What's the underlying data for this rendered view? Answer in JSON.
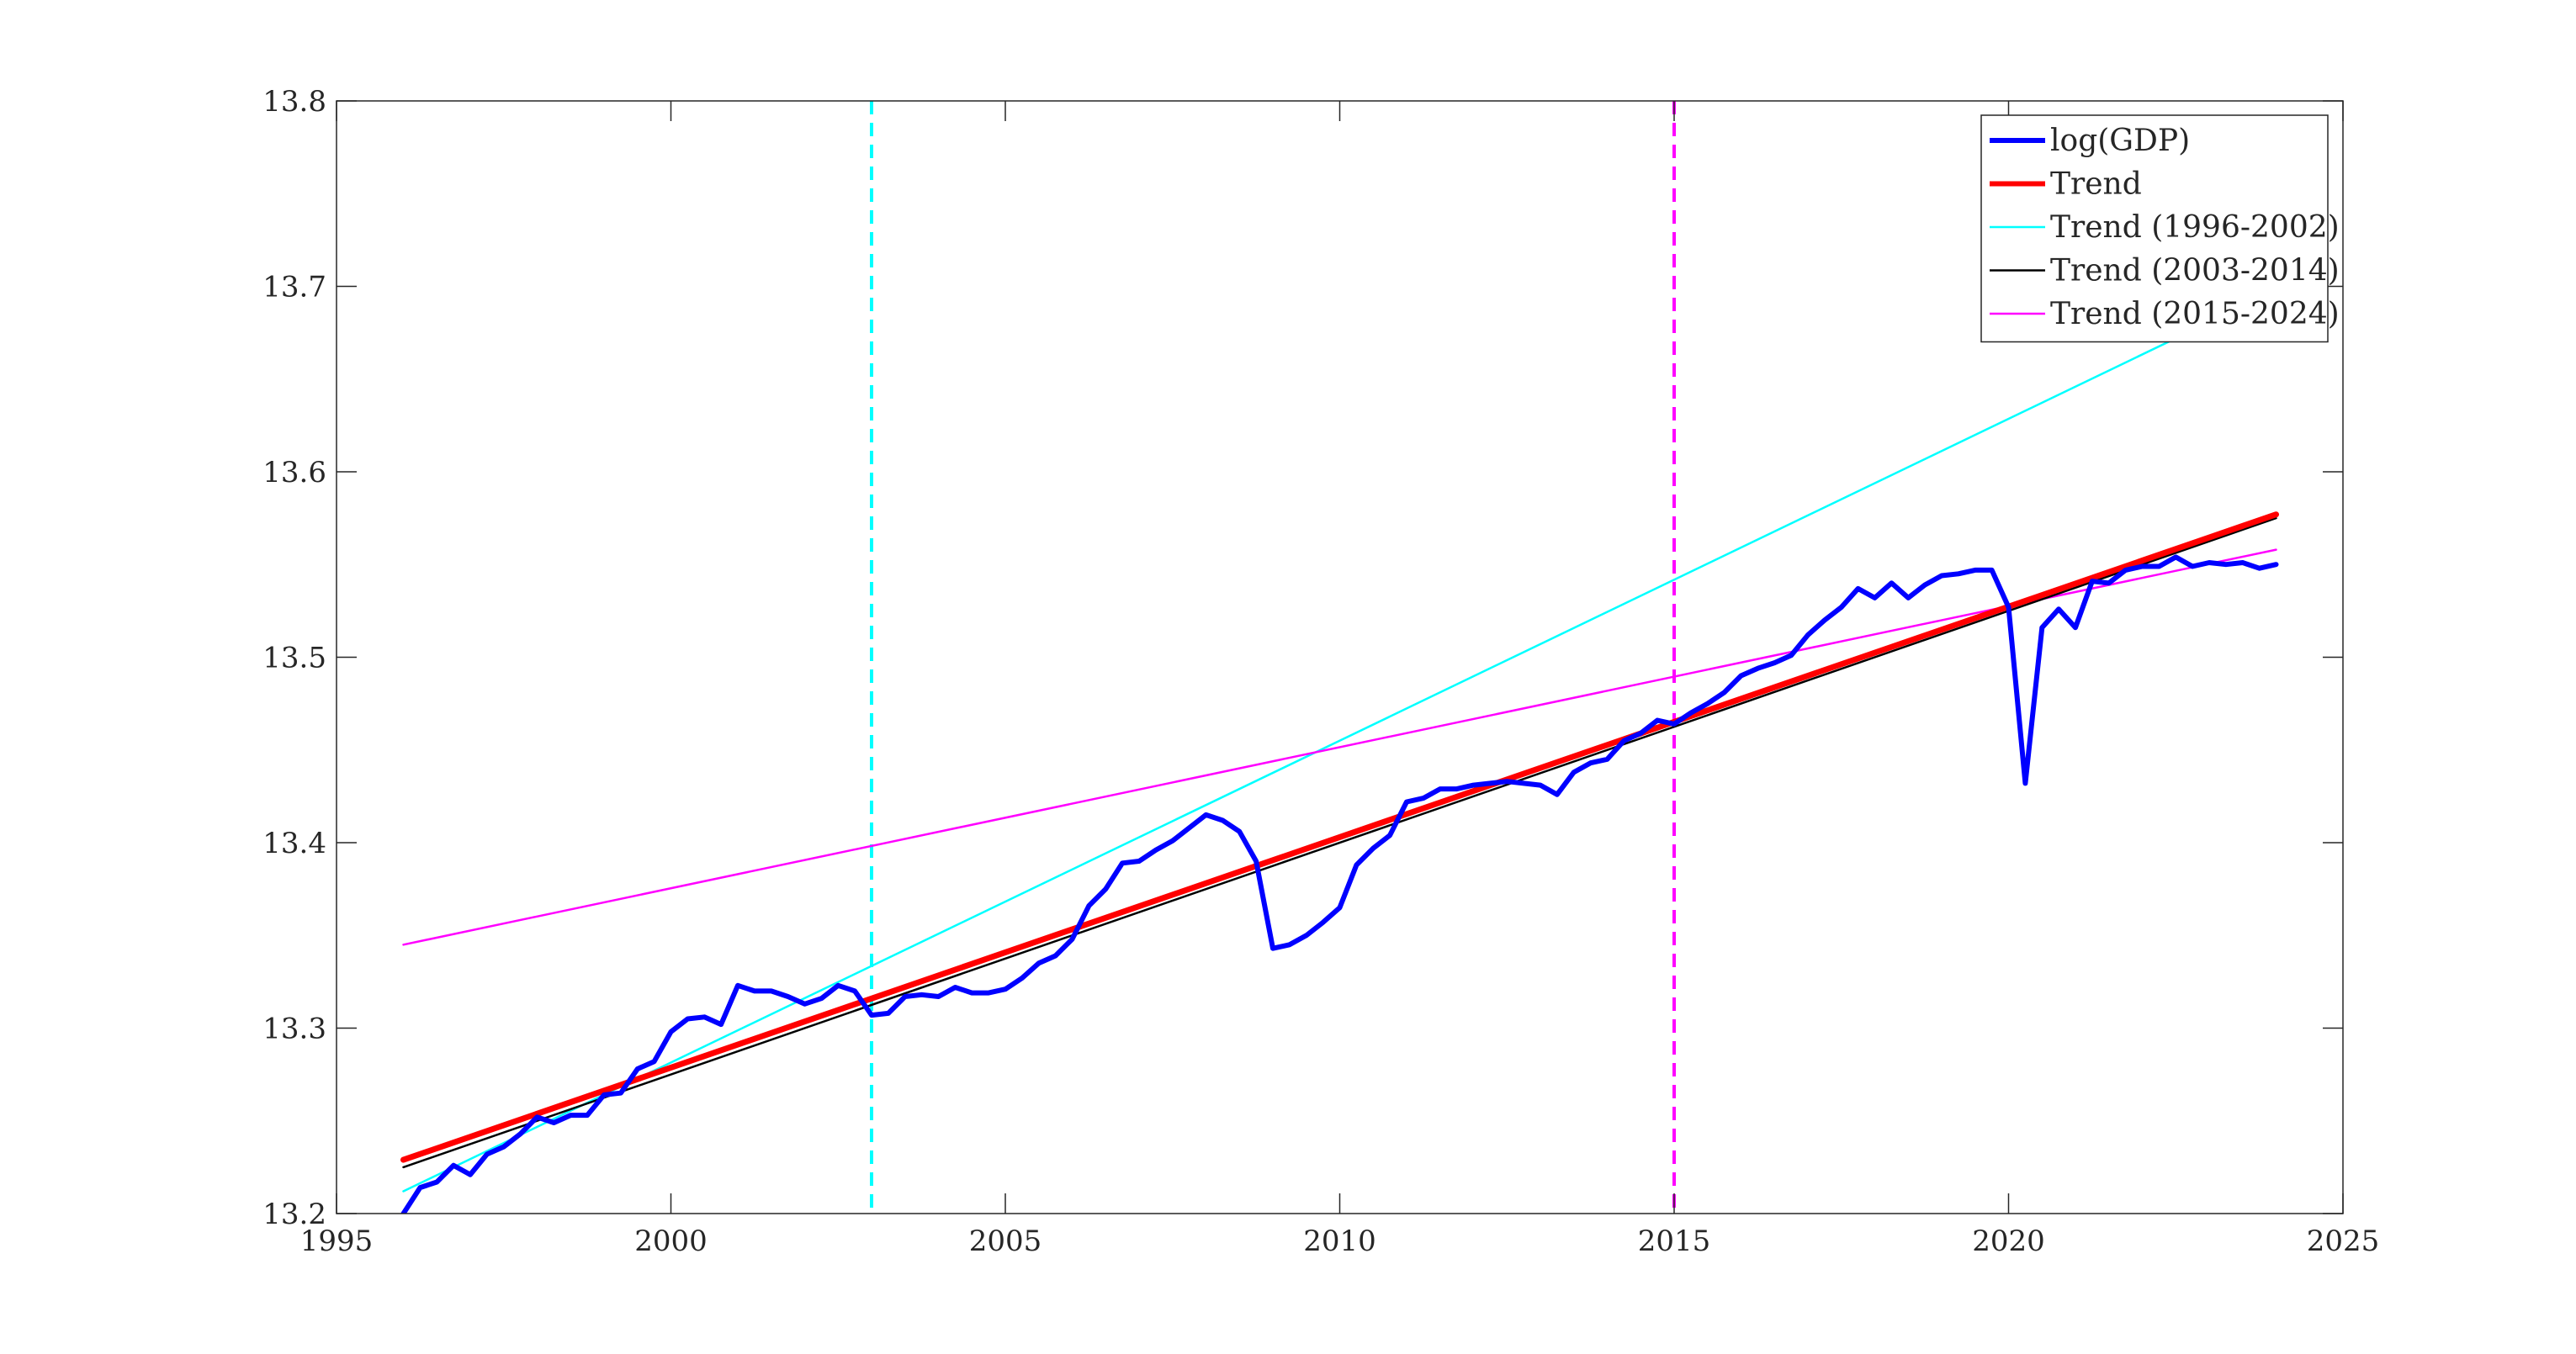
{
  "chart_data": {
    "type": "line",
    "title": "",
    "xlabel": "",
    "ylabel": "",
    "xlim": [
      1995,
      2025
    ],
    "ylim": [
      13.2,
      13.8
    ],
    "xticks": [
      "1995",
      "2000",
      "2005",
      "2010",
      "2015",
      "2020",
      "2025"
    ],
    "yticks": [
      "13.2",
      "13.3",
      "13.4",
      "13.5",
      "13.6",
      "13.7",
      "13.8"
    ],
    "grid": false,
    "legend_position": "top-right",
    "series": [
      {
        "name": "log(GDP)",
        "color": "#0000ff",
        "x": [
          1996.0,
          1996.25,
          1996.5,
          1996.75,
          1997.0,
          1997.25,
          1997.5,
          1997.75,
          1998.0,
          1998.25,
          1998.5,
          1998.75,
          1999.0,
          1999.25,
          1999.5,
          1999.75,
          2000.0,
          2000.25,
          2000.5,
          2000.75,
          2001.0,
          2001.25,
          2001.5,
          2001.75,
          2002.0,
          2002.25,
          2002.5,
          2002.75,
          2003.0,
          2003.25,
          2003.5,
          2003.75,
          2004.0,
          2004.25,
          2004.5,
          2004.75,
          2005.0,
          2005.25,
          2005.5,
          2005.75,
          2006.0,
          2006.25,
          2006.5,
          2006.75,
          2007.0,
          2007.25,
          2007.5,
          2007.75,
          2008.0,
          2008.25,
          2008.5,
          2008.75,
          2009.0,
          2009.25,
          2009.5,
          2009.75,
          2010.0,
          2010.25,
          2010.5,
          2010.75,
          2011.0,
          2011.25,
          2011.5,
          2011.75,
          2012.0,
          2012.25,
          2012.5,
          2012.75,
          2013.0,
          2013.25,
          2013.5,
          2013.75,
          2014.0,
          2014.25,
          2014.5,
          2014.75,
          2015.0,
          2015.25,
          2015.5,
          2015.75,
          2016.0,
          2016.25,
          2016.5,
          2016.75,
          2017.0,
          2017.25,
          2017.5,
          2017.75,
          2018.0,
          2018.25,
          2018.5,
          2018.75,
          2019.0,
          2019.25,
          2019.5,
          2019.75,
          2020.0,
          2020.25,
          2020.5,
          2020.75,
          2021.0,
          2021.25,
          2021.5,
          2021.75,
          2022.0,
          2022.25,
          2022.5,
          2022.75,
          2023.0,
          2023.25,
          2023.5,
          2023.75,
          2024.0
        ],
        "y": [
          13.2,
          13.214,
          13.217,
          13.226,
          13.221,
          13.232,
          13.236,
          13.243,
          13.252,
          13.249,
          13.253,
          13.253,
          13.264,
          13.265,
          13.278,
          13.282,
          13.298,
          13.305,
          13.306,
          13.302,
          13.323,
          13.32,
          13.32,
          13.317,
          13.313,
          13.316,
          13.323,
          13.32,
          13.307,
          13.308,
          13.317,
          13.318,
          13.317,
          13.322,
          13.319,
          13.319,
          13.321,
          13.327,
          13.335,
          13.339,
          13.348,
          13.366,
          13.375,
          13.389,
          13.39,
          13.396,
          13.401,
          13.408,
          13.415,
          13.412,
          13.406,
          13.39,
          13.343,
          13.345,
          13.35,
          13.357,
          13.365,
          13.388,
          13.397,
          13.404,
          13.422,
          13.424,
          13.429,
          13.429,
          13.431,
          13.432,
          13.433,
          13.432,
          13.431,
          13.426,
          13.438,
          13.443,
          13.445,
          13.455,
          13.459,
          13.466,
          13.464,
          13.47,
          13.475,
          13.481,
          13.49,
          13.494,
          13.497,
          13.501,
          13.512,
          13.52,
          13.527,
          13.537,
          13.532,
          13.54,
          13.532,
          13.539,
          13.544,
          13.545,
          13.547,
          13.547,
          13.527,
          13.432,
          13.516,
          13.526,
          13.516,
          13.541,
          13.54,
          13.547,
          13.549,
          13.549,
          13.554,
          13.549,
          13.551,
          13.55,
          13.551,
          13.548,
          13.55
        ]
      },
      {
        "name": "Trend",
        "color": "#ff0000",
        "x": [
          1996,
          2024
        ],
        "y": [
          13.229,
          13.577
        ]
      },
      {
        "name": "Trend (1996-2002)",
        "color": "#00ffff",
        "x": [
          1996,
          2024
        ],
        "y": [
          13.212,
          13.698
        ]
      },
      {
        "name": "Trend (2003-2014)",
        "color": "#000000",
        "x": [
          1996,
          2024
        ],
        "y": [
          13.225,
          13.575
        ]
      },
      {
        "name": "Trend (2015-2024)",
        "color": "#ff00ff",
        "x": [
          1996,
          2024
        ],
        "y": [
          13.345,
          13.558
        ]
      }
    ],
    "vertical_lines": [
      {
        "x": 2003,
        "color": "#00ffff",
        "style": "dashed"
      },
      {
        "x": 2015,
        "color": "#ff00ff",
        "style": "dashed"
      }
    ]
  }
}
